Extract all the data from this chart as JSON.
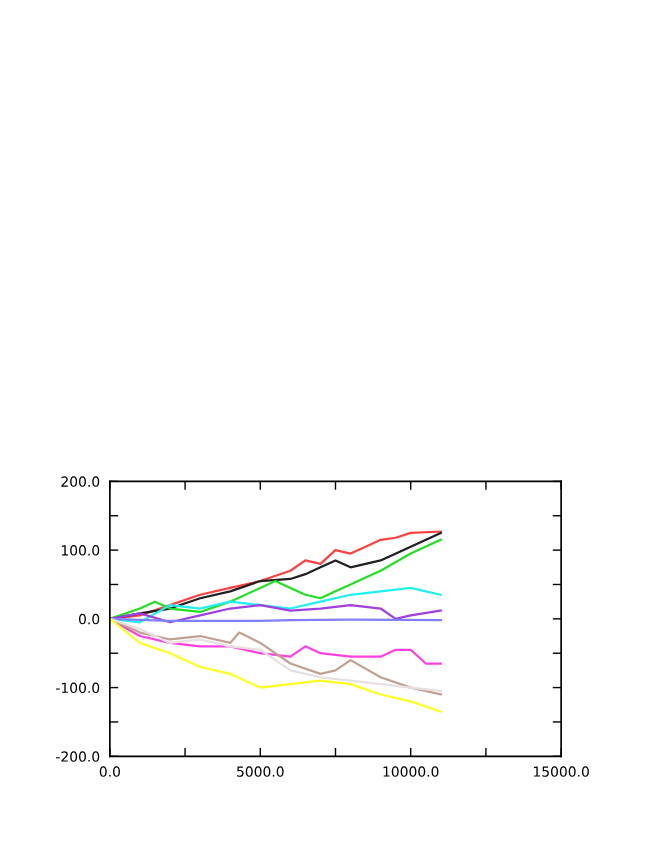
{
  "chart_data": {
    "type": "line",
    "xlim": [
      0,
      15000
    ],
    "ylim": [
      -200,
      200
    ],
    "xticks": [
      {
        "value": 0,
        "label": "0.0"
      },
      {
        "value": 2500,
        "label": null
      },
      {
        "value": 5000,
        "label": "5000.0"
      },
      {
        "value": 7500,
        "label": null
      },
      {
        "value": 10000,
        "label": "10000.0"
      },
      {
        "value": 12500,
        "label": null
      },
      {
        "value": 15000,
        "label": "15000.0"
      }
    ],
    "yticks": [
      {
        "value": -200,
        "label": "-200.0"
      },
      {
        "value": -150,
        "label": null
      },
      {
        "value": -100,
        "label": "-100.0"
      },
      {
        "value": -50,
        "label": null
      },
      {
        "value": 0,
        "label": "0.0"
      },
      {
        "value": 50,
        "label": null
      },
      {
        "value": 100,
        "label": "100.0"
      },
      {
        "value": 150,
        "label": null
      },
      {
        "value": 200,
        "label": "200.0"
      }
    ],
    "grid": false,
    "legend": false,
    "marker": "none",
    "line_style": "solid",
    "series": [
      {
        "color": "#ff4040",
        "x": [
          0,
          1000,
          2000,
          3000,
          4000,
          5000,
          6000,
          6500,
          7000,
          7500,
          8000,
          8500,
          9000,
          9500,
          10000,
          11000
        ],
        "values": [
          0,
          5,
          20,
          35,
          45,
          55,
          70,
          85,
          80,
          100,
          95,
          105,
          115,
          118,
          125,
          127
        ]
      },
      {
        "color": "#202020",
        "x": [
          0,
          1000,
          2000,
          3000,
          4000,
          5000,
          6000,
          6500,
          7000,
          7500,
          8000,
          8500,
          9000,
          10000,
          11000
        ],
        "values": [
          0,
          8,
          15,
          30,
          40,
          55,
          58,
          65,
          75,
          85,
          75,
          80,
          85,
          105,
          125
        ]
      },
      {
        "color": "#20e020",
        "x": [
          0,
          1000,
          1500,
          2000,
          3000,
          4000,
          5000,
          5500,
          6000,
          6500,
          7000,
          7500,
          8000,
          8500,
          9000,
          10000,
          11000
        ],
        "values": [
          0,
          15,
          25,
          15,
          10,
          25,
          45,
          55,
          45,
          35,
          30,
          40,
          50,
          60,
          70,
          95,
          115
        ]
      },
      {
        "color": "#20f0f0",
        "x": [
          0,
          1000,
          2000,
          3000,
          4000,
          5000,
          6000,
          7000,
          8000,
          9000,
          10000,
          10500,
          11000
        ],
        "values": [
          0,
          -5,
          20,
          15,
          25,
          20,
          15,
          25,
          35,
          40,
          45,
          40,
          35
        ]
      },
      {
        "color": "#a040e0",
        "x": [
          0,
          1000,
          2000,
          3000,
          4000,
          5000,
          6000,
          7000,
          8000,
          9000,
          9500,
          10000,
          11000
        ],
        "values": [
          0,
          8,
          -5,
          5,
          15,
          20,
          12,
          15,
          20,
          15,
          0,
          5,
          12
        ]
      },
      {
        "color": "#8080ff",
        "x": [
          0,
          2000,
          5000,
          6000,
          8000,
          11000
        ],
        "values": [
          0,
          -3,
          -3,
          -2,
          -1,
          -2
        ]
      },
      {
        "color": "#ff40e0",
        "x": [
          0,
          1000,
          2000,
          3000,
          4000,
          5000,
          6000,
          6500,
          7000,
          8000,
          9000,
          9500,
          10000,
          10500,
          11000
        ],
        "values": [
          0,
          -25,
          -35,
          -40,
          -40,
          -50,
          -55,
          -40,
          -50,
          -55,
          -55,
          -45,
          -45,
          -65,
          -65
        ]
      },
      {
        "color": "#c0a090",
        "x": [
          0,
          1000,
          2000,
          3000,
          4000,
          4300,
          5000,
          6000,
          7000,
          7500,
          8000,
          9000,
          10000,
          11000
        ],
        "values": [
          0,
          -20,
          -30,
          -25,
          -35,
          -20,
          -35,
          -65,
          -80,
          -75,
          -60,
          -85,
          -100,
          -110
        ]
      },
      {
        "color": "#e8e0e0",
        "x": [
          0,
          1000,
          2000,
          3000,
          4000,
          5000,
          6000,
          7000,
          8000,
          9000,
          10000,
          11000
        ],
        "values": [
          0,
          -15,
          -35,
          -30,
          -40,
          -45,
          -75,
          -85,
          -90,
          -95,
          -100,
          -105
        ]
      },
      {
        "color": "#ffff20",
        "x": [
          0,
          1000,
          2000,
          3000,
          4000,
          5000,
          6000,
          7000,
          8000,
          9000,
          10000,
          11000
        ],
        "values": [
          0,
          -35,
          -50,
          -70,
          -80,
          -100,
          -95,
          -90,
          -95,
          -110,
          -120,
          -135
        ]
      }
    ]
  }
}
